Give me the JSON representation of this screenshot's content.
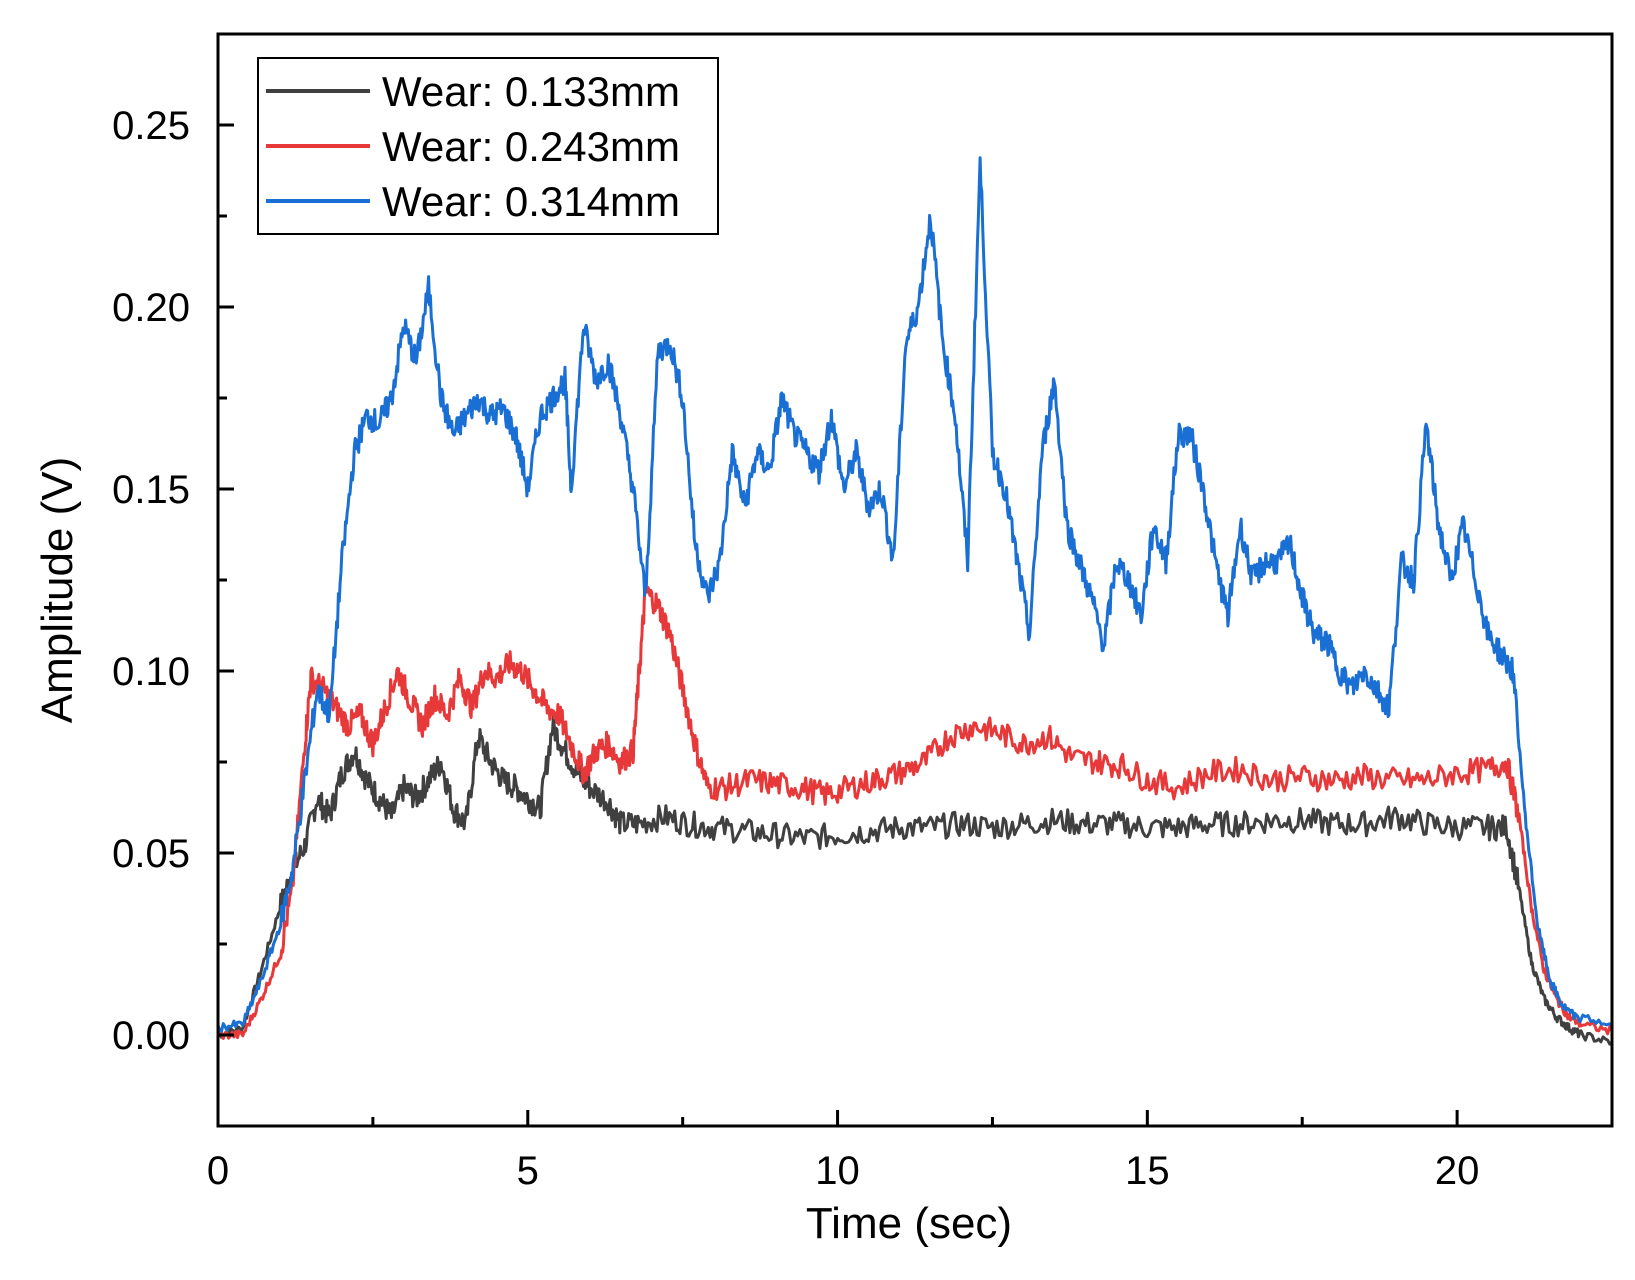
{
  "chart_data": {
    "type": "line",
    "xlabel": "Time (sec)",
    "ylabel": "Amplitude (V)",
    "xlim": [
      0,
      22.5
    ],
    "ylim": [
      -0.025,
      0.275
    ],
    "xticks": [
      0,
      5,
      10,
      15,
      20
    ],
    "xtick_labels": [
      "0",
      "5",
      "10",
      "15",
      "20"
    ],
    "yticks": [
      0.0,
      0.05,
      0.1,
      0.15,
      0.2,
      0.25
    ],
    "ytick_labels": [
      "0.00",
      "0.05",
      "0.10",
      "0.15",
      "0.20",
      "0.25"
    ],
    "grid": false,
    "legend": "top-left",
    "series": [
      {
        "name": "Wear: 0.133mm",
        "color": "#404040",
        "x": [
          0,
          0.4,
          0.7,
          1.0,
          1.2,
          1.4,
          1.6,
          1.8,
          2.0,
          2.2,
          2.4,
          2.6,
          2.8,
          3.0,
          3.2,
          3.4,
          3.6,
          3.8,
          4.0,
          4.2,
          4.4,
          4.6,
          4.8,
          5.0,
          5.2,
          5.4,
          5.6,
          5.8,
          6.0,
          6.3,
          6.5,
          6.8,
          7.2,
          7.6,
          8.0,
          8.5,
          9.0,
          9.5,
          10.0,
          10.5,
          11.0,
          11.5,
          12.0,
          12.5,
          13.0,
          13.5,
          14.0,
          14.5,
          15.0,
          15.5,
          16.0,
          16.5,
          17.0,
          17.5,
          18.0,
          18.5,
          19.0,
          19.5,
          20.0,
          20.5,
          20.8,
          21.0,
          21.2,
          21.4,
          21.6,
          21.8,
          22.0,
          22.5
        ],
        "y": [
          0.0,
          0.002,
          0.018,
          0.035,
          0.045,
          0.052,
          0.065,
          0.06,
          0.072,
          0.078,
          0.07,
          0.065,
          0.06,
          0.068,
          0.065,
          0.07,
          0.075,
          0.062,
          0.058,
          0.082,
          0.075,
          0.07,
          0.068,
          0.065,
          0.062,
          0.085,
          0.078,
          0.072,
          0.068,
          0.064,
          0.058,
          0.058,
          0.06,
          0.058,
          0.057,
          0.056,
          0.055,
          0.054,
          0.055,
          0.056,
          0.057,
          0.057,
          0.058,
          0.057,
          0.058,
          0.059,
          0.058,
          0.058,
          0.057,
          0.057,
          0.058,
          0.058,
          0.059,
          0.059,
          0.058,
          0.058,
          0.06,
          0.058,
          0.057,
          0.057,
          0.057,
          0.04,
          0.02,
          0.01,
          0.005,
          0.002,
          0.0,
          -0.002
        ]
      },
      {
        "name": "Wear: 0.243mm",
        "color": "#e8393a",
        "x": [
          0,
          0.4,
          0.7,
          1.0,
          1.2,
          1.4,
          1.5,
          1.7,
          1.9,
          2.1,
          2.3,
          2.5,
          2.7,
          2.9,
          3.1,
          3.3,
          3.5,
          3.7,
          3.9,
          4.1,
          4.3,
          4.5,
          4.7,
          4.9,
          5.1,
          5.3,
          5.5,
          5.7,
          5.9,
          6.1,
          6.3,
          6.5,
          6.7,
          6.8,
          6.9,
          7.1,
          7.3,
          7.5,
          7.7,
          7.9,
          8.2,
          8.6,
          9.0,
          9.4,
          9.8,
          10.2,
          10.6,
          11.0,
          11.4,
          11.8,
          12.2,
          12.6,
          13.0,
          13.4,
          13.8,
          14.2,
          14.6,
          15.0,
          15.5,
          16.0,
          16.5,
          17.0,
          17.5,
          18.0,
          18.5,
          19.0,
          19.5,
          20.0,
          20.5,
          20.8,
          21.0,
          21.2,
          21.4,
          21.6,
          21.8,
          22.0,
          22.5
        ],
        "y": [
          0.0,
          0.0,
          0.01,
          0.022,
          0.04,
          0.08,
          0.098,
          0.095,
          0.09,
          0.085,
          0.088,
          0.08,
          0.09,
          0.1,
          0.092,
          0.085,
          0.093,
          0.088,
          0.098,
          0.09,
          0.1,
          0.098,
          0.102,
          0.1,
          0.095,
          0.09,
          0.088,
          0.08,
          0.072,
          0.078,
          0.08,
          0.075,
          0.078,
          0.1,
          0.122,
          0.118,
          0.11,
          0.095,
          0.08,
          0.068,
          0.068,
          0.07,
          0.069,
          0.068,
          0.066,
          0.068,
          0.07,
          0.072,
          0.075,
          0.082,
          0.085,
          0.083,
          0.08,
          0.082,
          0.076,
          0.075,
          0.074,
          0.07,
          0.068,
          0.072,
          0.073,
          0.07,
          0.071,
          0.07,
          0.071,
          0.07,
          0.07,
          0.072,
          0.073,
          0.075,
          0.06,
          0.035,
          0.018,
          0.01,
          0.005,
          0.003,
          0.001
        ]
      },
      {
        "name": "Wear: 0.314mm",
        "color": "#1a6fd4",
        "x": [
          0,
          0.4,
          0.7,
          1.0,
          1.2,
          1.4,
          1.6,
          1.8,
          2.0,
          2.2,
          2.4,
          2.6,
          2.8,
          3.0,
          3.2,
          3.4,
          3.6,
          3.8,
          4.0,
          4.2,
          4.4,
          4.6,
          4.8,
          5.0,
          5.2,
          5.4,
          5.6,
          5.7,
          5.9,
          6.1,
          6.3,
          6.5,
          6.7,
          6.9,
          7.1,
          7.3,
          7.5,
          7.7,
          7.9,
          8.1,
          8.3,
          8.5,
          8.7,
          8.9,
          9.1,
          9.3,
          9.5,
          9.7,
          9.9,
          10.1,
          10.3,
          10.5,
          10.7,
          10.9,
          11.1,
          11.3,
          11.5,
          11.7,
          11.9,
          12.1,
          12.3,
          12.5,
          12.7,
          12.9,
          13.1,
          13.3,
          13.5,
          13.7,
          13.9,
          14.1,
          14.3,
          14.5,
          14.7,
          14.9,
          15.1,
          15.3,
          15.5,
          15.7,
          15.9,
          16.1,
          16.3,
          16.5,
          16.7,
          16.9,
          17.1,
          17.3,
          17.5,
          17.7,
          17.9,
          18.1,
          18.3,
          18.5,
          18.7,
          18.9,
          19.1,
          19.3,
          19.5,
          19.7,
          19.9,
          20.1,
          20.3,
          20.5,
          20.7,
          20.9,
          21.1,
          21.3,
          21.5,
          21.7,
          21.9,
          22.5
        ],
        "y": [
          0.002,
          0.003,
          0.015,
          0.03,
          0.045,
          0.07,
          0.095,
          0.088,
          0.13,
          0.16,
          0.17,
          0.168,
          0.175,
          0.195,
          0.185,
          0.205,
          0.175,
          0.165,
          0.17,
          0.175,
          0.17,
          0.172,
          0.165,
          0.15,
          0.17,
          0.175,
          0.18,
          0.15,
          0.195,
          0.18,
          0.185,
          0.17,
          0.15,
          0.12,
          0.188,
          0.19,
          0.175,
          0.135,
          0.12,
          0.13,
          0.16,
          0.145,
          0.16,
          0.155,
          0.175,
          0.165,
          0.16,
          0.155,
          0.17,
          0.15,
          0.16,
          0.145,
          0.15,
          0.13,
          0.19,
          0.2,
          0.225,
          0.19,
          0.17,
          0.13,
          0.24,
          0.16,
          0.15,
          0.13,
          0.11,
          0.16,
          0.18,
          0.14,
          0.13,
          0.12,
          0.107,
          0.13,
          0.125,
          0.115,
          0.14,
          0.13,
          0.165,
          0.165,
          0.15,
          0.13,
          0.115,
          0.14,
          0.125,
          0.13,
          0.13,
          0.135,
          0.12,
          0.11,
          0.108,
          0.1,
          0.095,
          0.1,
          0.095,
          0.09,
          0.13,
          0.125,
          0.168,
          0.14,
          0.125,
          0.14,
          0.125,
          0.11,
          0.105,
          0.1,
          0.06,
          0.03,
          0.015,
          0.008,
          0.005,
          0.003
        ]
      }
    ]
  }
}
